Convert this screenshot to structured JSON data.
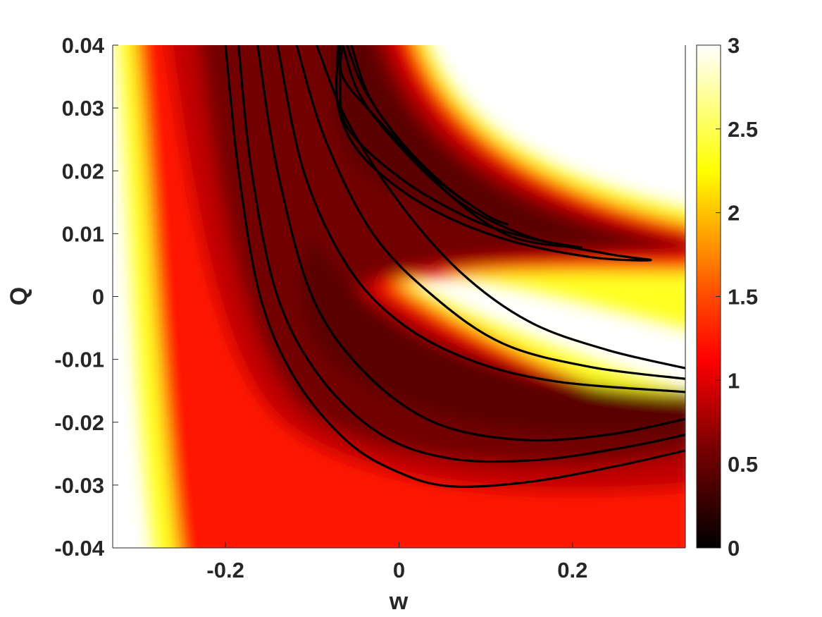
{
  "chart_data": {
    "type": "heatmap",
    "title": "",
    "xlabel": "w",
    "ylabel": "Q",
    "xlim": [
      -0.33,
      0.33
    ],
    "ylim": [
      -0.04,
      0.04
    ],
    "x_ticks": [
      -0.2,
      0,
      0.2
    ],
    "x_tick_labels": [
      "-0.2",
      "0",
      "0.2"
    ],
    "y_ticks": [
      0.04,
      0.03,
      0.02,
      0.01,
      0,
      -0.01,
      -0.02,
      -0.03,
      -0.04
    ],
    "y_tick_labels": [
      "0.04",
      "0.03",
      "0.02",
      "0.01",
      "0",
      "-0.01",
      "-0.02",
      "-0.03",
      "-0.04"
    ],
    "colorbar": {
      "colormap": "hot",
      "range": [
        0,
        3
      ],
      "ticks": [
        0,
        0.5,
        1,
        1.5,
        2,
        2.5,
        3
      ],
      "tick_labels": [
        "0",
        "0.5",
        "1",
        "1.5",
        "2",
        "2.5",
        "3"
      ],
      "colors": [
        "#000000",
        "#c80000",
        "#ff0000",
        "#ff8c00",
        "#ffff00",
        "#ffffff"
      ]
    },
    "grid": false,
    "legend": "none",
    "contour_lines": [
      {
        "name": "",
        "points": [
          [
            -0.2,
            0.04
          ],
          [
            -0.185,
            0.02
          ],
          [
            -0.16,
            0.0
          ],
          [
            -0.12,
            -0.013
          ],
          [
            -0.06,
            -0.023
          ],
          [
            0.0,
            -0.028
          ],
          [
            0.06,
            -0.0302
          ],
          [
            0.15,
            -0.0295
          ],
          [
            0.25,
            -0.027
          ],
          [
            0.33,
            -0.0245
          ]
        ]
      },
      {
        "name": "",
        "points": [
          [
            -0.185,
            0.04
          ],
          [
            -0.17,
            0.02
          ],
          [
            -0.14,
            0.0
          ],
          [
            -0.09,
            -0.013
          ],
          [
            -0.02,
            -0.022
          ],
          [
            0.06,
            -0.0258
          ],
          [
            0.16,
            -0.026
          ],
          [
            0.26,
            -0.024
          ],
          [
            0.33,
            -0.022
          ]
        ]
      },
      {
        "name": "",
        "points": [
          [
            -0.163,
            0.04
          ],
          [
            -0.14,
            0.02
          ],
          [
            -0.1,
            0.0
          ],
          [
            -0.04,
            -0.012
          ],
          [
            0.04,
            -0.02
          ],
          [
            0.14,
            -0.0228
          ],
          [
            0.24,
            -0.022
          ],
          [
            0.33,
            -0.0195
          ]
        ]
      },
      {
        "name": "",
        "points": [
          [
            -0.14,
            0.04
          ],
          [
            -0.11,
            0.02
          ],
          [
            -0.06,
            0.005
          ],
          [
            0.0,
            -0.004
          ],
          [
            0.08,
            -0.01
          ],
          [
            0.18,
            -0.0135
          ],
          [
            0.33,
            -0.0152
          ]
        ]
      },
      {
        "name": "",
        "points": [
          [
            -0.118,
            0.04
          ],
          [
            -0.085,
            0.025
          ],
          [
            -0.03,
            0.01
          ],
          [
            0.04,
            0.0
          ],
          [
            0.12,
            -0.0075
          ],
          [
            0.22,
            -0.0112
          ],
          [
            0.33,
            -0.0131
          ]
        ]
      },
      {
        "name": "",
        "points": [
          [
            -0.095,
            0.04
          ],
          [
            -0.06,
            0.028
          ],
          [
            0.0,
            0.015
          ],
          [
            0.07,
            0.004
          ],
          [
            0.15,
            -0.004
          ],
          [
            0.24,
            -0.0085
          ],
          [
            0.33,
            -0.0114
          ]
        ]
      },
      {
        "name": "",
        "points": [
          [
            -0.055,
            0.04
          ],
          [
            -0.035,
            0.032
          ],
          [
            0.0,
            0.025
          ],
          [
            0.05,
            0.018
          ],
          [
            0.1,
            0.013
          ],
          [
            0.125,
            0.0115
          ],
          [
            0.1,
            0.013
          ],
          [
            0.04,
            0.019
          ],
          [
            -0.03,
            0.029
          ],
          [
            -0.065,
            0.035
          ],
          [
            -0.065,
            0.04
          ]
        ]
      },
      {
        "name": "",
        "points": [
          [
            -0.06,
            0.04
          ],
          [
            -0.04,
            0.033
          ],
          [
            0.0,
            0.025
          ],
          [
            0.06,
            0.016
          ],
          [
            0.13,
            0.0095
          ],
          [
            0.21,
            0.0078
          ],
          [
            0.15,
            0.0093
          ],
          [
            0.08,
            0.0125
          ],
          [
            0.0,
            0.019
          ],
          [
            -0.06,
            0.027
          ],
          [
            -0.068,
            0.035
          ],
          [
            -0.068,
            0.04
          ]
        ]
      },
      {
        "name": "",
        "points": [
          [
            -0.065,
            0.04
          ],
          [
            -0.045,
            0.032
          ],
          [
            0.0,
            0.024
          ],
          [
            0.07,
            0.015
          ],
          [
            0.15,
            0.0095
          ],
          [
            0.24,
            0.0068
          ],
          [
            0.29,
            0.0058
          ],
          [
            0.22,
            0.0063
          ],
          [
            0.12,
            0.0092
          ],
          [
            0.03,
            0.0145
          ],
          [
            -0.04,
            0.022
          ],
          [
            -0.07,
            0.03
          ],
          [
            -0.07,
            0.04
          ]
        ]
      }
    ]
  }
}
